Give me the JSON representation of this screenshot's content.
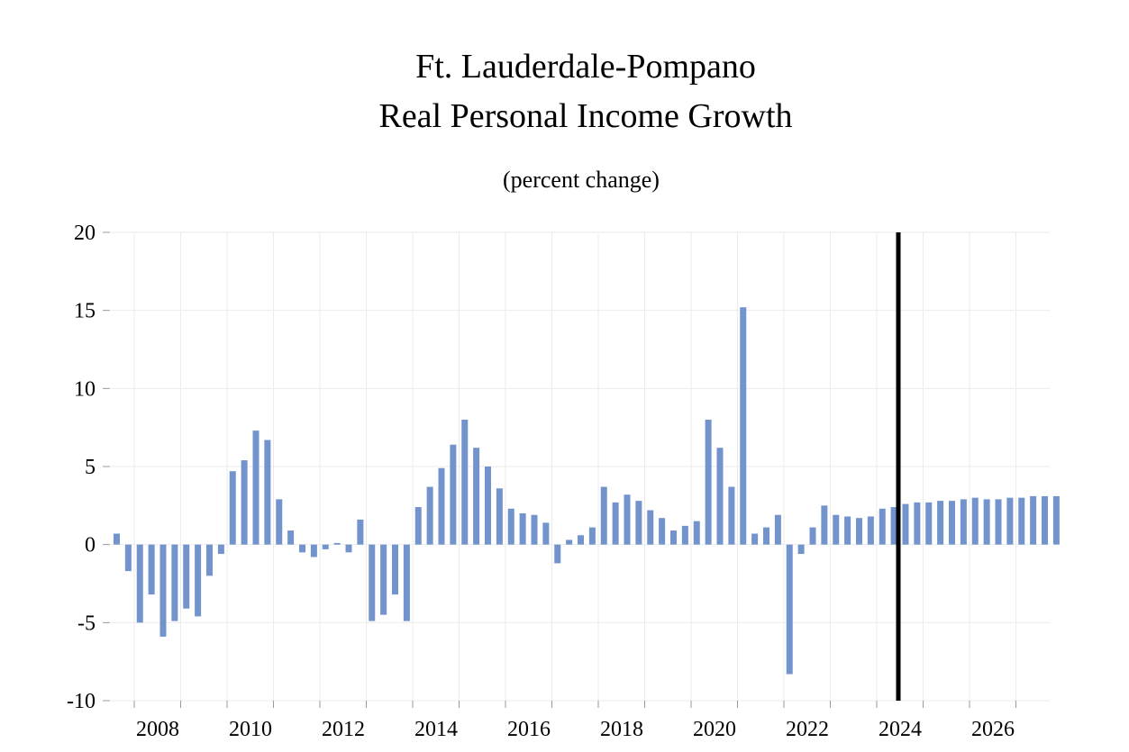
{
  "chart_data": {
    "type": "bar",
    "title": "Ft. Lauderdale-Pompano",
    "subtitle": "Real Personal Income Growth",
    "note": "(percent change)",
    "xlabel": "",
    "ylabel": "",
    "ylim": [
      -10,
      20
    ],
    "yticks": [
      "20",
      "15",
      "10",
      "5",
      "0",
      "-5",
      "-10"
    ],
    "xtick_labels": [
      "2008",
      "2010",
      "2012",
      "2014",
      "2016",
      "2018",
      "2020",
      "2022",
      "2024",
      "2026"
    ],
    "grid": true,
    "bar_color": "#7393cc",
    "divider_color": "#000000",
    "divider_at": "2024Q1",
    "frequency": "quarterly",
    "start": "2007Q1",
    "values": [
      0.7,
      -1.7,
      -5.0,
      -3.2,
      -5.9,
      -4.9,
      -4.1,
      -4.6,
      -2.0,
      -0.6,
      4.7,
      5.4,
      7.3,
      6.7,
      2.9,
      0.9,
      -0.5,
      -0.8,
      -0.3,
      0.1,
      -0.5,
      1.6,
      -4.9,
      -4.5,
      -3.2,
      -4.9,
      2.4,
      3.7,
      4.9,
      6.4,
      8.0,
      6.2,
      5.0,
      3.6,
      2.3,
      2.0,
      1.9,
      1.4,
      -1.2,
      0.3,
      0.6,
      1.1,
      3.7,
      2.7,
      3.2,
      2.8,
      2.2,
      1.7,
      0.9,
      1.2,
      1.5,
      8.0,
      6.2,
      3.7,
      15.2,
      0.7,
      1.1,
      1.9,
      -8.3,
      -0.6,
      1.1,
      2.5,
      1.9,
      1.8,
      1.7,
      1.8,
      2.3,
      2.4,
      2.6,
      2.7,
      2.7,
      2.8,
      2.8,
      2.9,
      3.0,
      2.9,
      2.9,
      3.0,
      3.0,
      3.1,
      3.1,
      3.1
    ]
  }
}
